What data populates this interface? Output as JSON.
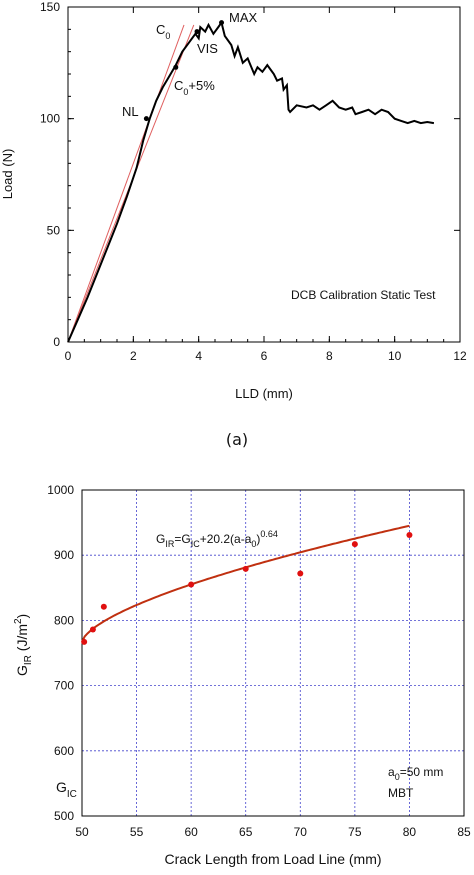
{
  "caption_a": "(a)",
  "chart_data": [
    {
      "type": "line",
      "title": "",
      "xlabel": "LLD (mm)",
      "ylabel": "Load (N)",
      "xlim": [
        0,
        12
      ],
      "ylim": [
        0,
        150
      ],
      "xticks": [
        0,
        2,
        4,
        6,
        8,
        10,
        12
      ],
      "yticks": [
        0,
        50,
        100,
        150
      ],
      "grid": false,
      "annotation": "DCB Calibration Static Test",
      "series": [
        {
          "color": "#000000",
          "points": [
            [
              0,
              0
            ],
            [
              0.3,
              10
            ],
            [
              0.6,
              20
            ],
            [
              0.9,
              31
            ],
            [
              1.2,
              42
            ],
            [
              1.5,
              53
            ],
            [
              1.8,
              65
            ],
            [
              2.1,
              78
            ],
            [
              2.3,
              90
            ],
            [
              2.5,
              100
            ],
            [
              2.7,
              108
            ],
            [
              2.9,
              114
            ],
            [
              3.1,
              119
            ],
            [
              3.3,
              124
            ],
            [
              3.5,
              130
            ],
            [
              3.7,
              134
            ],
            [
              3.9,
              138
            ],
            [
              4.0,
              136
            ],
            [
              4.05,
              141
            ],
            [
              4.2,
              139
            ],
            [
              4.3,
              142
            ],
            [
              4.45,
              138
            ],
            [
              4.6,
              141
            ],
            [
              4.7,
              143
            ],
            [
              4.8,
              137
            ],
            [
              5.0,
              133
            ],
            [
              5.1,
              128
            ],
            [
              5.2,
              132
            ],
            [
              5.35,
              125
            ],
            [
              5.5,
              127
            ],
            [
              5.7,
              120
            ],
            [
              5.8,
              123
            ],
            [
              5.95,
              121
            ],
            [
              6.1,
              124
            ],
            [
              6.3,
              120
            ],
            [
              6.4,
              117
            ],
            [
              6.55,
              118
            ],
            [
              6.6,
              113
            ],
            [
              6.7,
              115
            ],
            [
              6.75,
              104
            ],
            [
              6.8,
              103
            ],
            [
              7.0,
              106
            ],
            [
              7.3,
              105
            ],
            [
              7.5,
              106
            ],
            [
              7.7,
              104
            ],
            [
              7.9,
              106
            ],
            [
              8.1,
              108
            ],
            [
              8.3,
              105
            ],
            [
              8.5,
              104
            ],
            [
              8.7,
              105
            ],
            [
              8.8,
              102
            ],
            [
              9.0,
              103
            ],
            [
              9.2,
              104
            ],
            [
              9.4,
              102
            ],
            [
              9.6,
              104
            ],
            [
              9.8,
              103
            ],
            [
              10.0,
              100
            ],
            [
              10.2,
              99
            ],
            [
              10.4,
              98
            ],
            [
              10.6,
              99
            ],
            [
              10.8,
              98
            ],
            [
              11.0,
              98.5
            ],
            [
              11.2,
              98
            ]
          ]
        },
        {
          "color": "#e06060",
          "points": [
            [
              0,
              0
            ],
            [
              3.55,
              142
            ]
          ]
        },
        {
          "color": "#e06060",
          "points": [
            [
              0,
              0
            ],
            [
              3.85,
              142
            ]
          ]
        }
      ],
      "markers": [
        {
          "label": "NL",
          "x": 2.4,
          "y": 100
        },
        {
          "label": "C0+5%",
          "x": 3.3,
          "y": 123
        },
        {
          "label": "VIS",
          "x": 3.95,
          "y": 139
        },
        {
          "label": "MAX",
          "x": 4.7,
          "y": 143
        }
      ],
      "labels": {
        "c0_main": "C",
        "c0_sub": "0",
        "c05_main": "C",
        "c05_sub": "0",
        "c05_rest": "+5%",
        "nl": "NL",
        "vis": "VIS",
        "max": "MAX"
      }
    },
    {
      "type": "scatter",
      "title": "",
      "xlabel": "Crack Length from Load Line (mm)",
      "ylabel": "G_IR (J/m^2)",
      "xlim": [
        50,
        85
      ],
      "ylim": [
        500,
        1000
      ],
      "xticks": [
        50,
        55,
        60,
        65,
        70,
        75,
        80,
        85
      ],
      "yticks": [
        500,
        600,
        700,
        800,
        900,
        1000
      ],
      "grid": true,
      "points": [
        [
          50.2,
          767
        ],
        [
          51,
          786
        ],
        [
          52,
          821
        ],
        [
          60,
          855
        ],
        [
          65,
          879
        ],
        [
          70,
          872
        ],
        [
          75,
          917
        ],
        [
          80,
          931
        ]
      ],
      "fit_curve": {
        "color": "#c03010",
        "equation": "G_IR=G_IC+20.2(a-a_0)^0.64",
        "a0": 50,
        "GIC": 767,
        "coef": 20.2,
        "exp": 0.64,
        "x_end": 80
      },
      "annotation": {
        "a0_text": "a_0=50 mm",
        "method": "MBT"
      },
      "labels": {
        "y_main": "G",
        "y_sub": "IR",
        "y_rest": " (J/m",
        "y_sup": "2",
        "y_close": ")",
        "gic_main": "G",
        "gic_sub": "IC",
        "eq_g1": "G",
        "eq_s1": "IR",
        "eq_mid": "=G",
        "eq_s2": "IC",
        "eq_rest": "+20.2(a-a",
        "eq_s3": "0",
        "eq_close": ")",
        "eq_exp": "0.64",
        "a0_main": "a",
        "a0_sub": "0",
        "a0_rest": "=50 mm",
        "method": "MBT"
      }
    }
  ]
}
